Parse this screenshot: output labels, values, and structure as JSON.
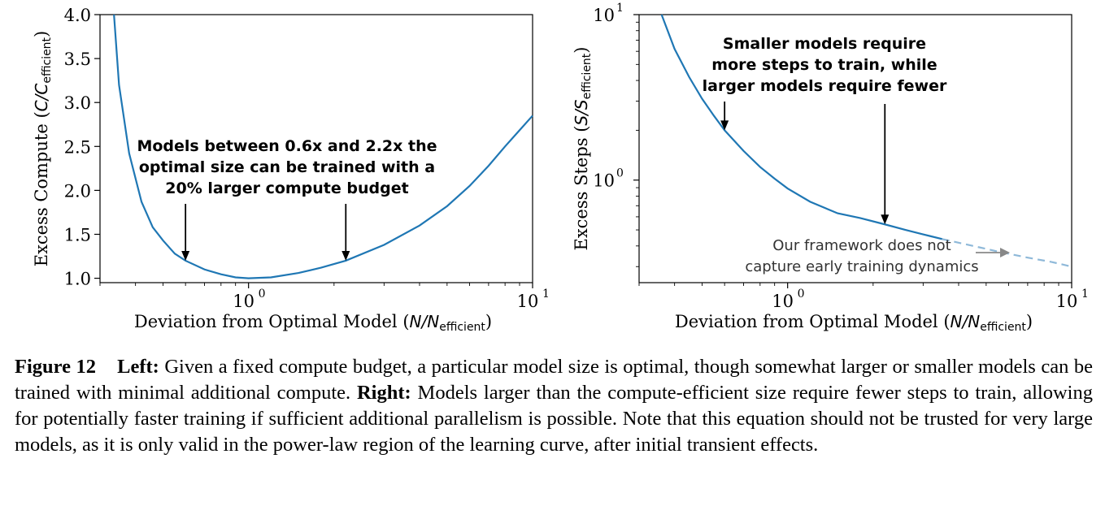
{
  "chart_data": [
    {
      "type": "line",
      "x_scale": "log",
      "y_scale": "linear",
      "xlim": [
        0.3,
        10
      ],
      "ylim": [
        0.95,
        4.0
      ],
      "xlabel_text": "Deviation from Optimal Model (",
      "xlabel_var": "N/N",
      "xlabel_sub": "efficient",
      "xlabel_close": ")",
      "ylabel_text": "Excess Compute (",
      "ylabel_var": "C/C",
      "ylabel_sub": "efficient",
      "ylabel_close": ")",
      "y_ticks": [
        "1.0",
        "1.5",
        "2.0",
        "2.5",
        "3.0",
        "3.5",
        "4.0"
      ],
      "x_ticks": [
        {
          "base": "10",
          "exp": "0"
        },
        {
          "base": "10",
          "exp": "1"
        }
      ],
      "series_color": "#1f77b4",
      "series": [
        {
          "x": [
            0.336,
            0.35,
            0.38,
            0.42,
            0.46,
            0.5,
            0.55,
            0.6,
            0.7,
            0.8,
            0.9,
            1.0,
            1.2,
            1.5,
            1.8,
            2.2,
            3.0,
            4.0,
            5.0,
            6.0,
            7.0,
            8.0,
            10.0
          ],
          "y": [
            4.0,
            3.2,
            2.42,
            1.87,
            1.58,
            1.43,
            1.28,
            1.2,
            1.1,
            1.045,
            1.01,
            1.0,
            1.01,
            1.06,
            1.12,
            1.2,
            1.38,
            1.6,
            1.82,
            2.05,
            2.28,
            2.5,
            2.85
          ]
        }
      ],
      "annotations": [
        {
          "lines": [
            "Models between 0.6x and 2.2x the",
            "optimal size can be trained with a",
            "20% larger compute budget"
          ]
        }
      ],
      "arrow_targets": [
        {
          "x": 0.6,
          "y": 1.2
        },
        {
          "x": 2.2,
          "y": 1.2
        }
      ]
    },
    {
      "type": "line",
      "x_scale": "log",
      "y_scale": "log",
      "xlim": [
        0.3,
        10
      ],
      "ylim": [
        0.24,
        10
      ],
      "xlabel_text": "Deviation from Optimal Model (",
      "xlabel_var": "N/N",
      "xlabel_sub": "efficient",
      "xlabel_close": ")",
      "ylabel_text": "Excess Steps (",
      "ylabel_var": "S/S",
      "ylabel_sub": "efficient",
      "ylabel_close": ")",
      "y_ticks": [
        {
          "base": "10",
          "exp": "0"
        },
        {
          "base": "10",
          "exp": "1"
        }
      ],
      "x_ticks": [
        {
          "base": "10",
          "exp": "0"
        },
        {
          "base": "10",
          "exp": "1"
        }
      ],
      "series_color": "#1f77b4",
      "dashed_color": "#8fb9d9",
      "series": [
        {
          "x": [
            0.36,
            0.4,
            0.45,
            0.5,
            0.55,
            0.6,
            0.7,
            0.8,
            0.9,
            1.0,
            1.2,
            1.5,
            1.8,
            2.2,
            2.6,
            3.0,
            3.5
          ],
          "y": [
            10.0,
            6.2,
            4.2,
            3.1,
            2.45,
            2.0,
            1.5,
            1.2,
            1.02,
            0.89,
            0.74,
            0.63,
            0.59,
            0.54,
            0.5,
            0.47,
            0.44
          ]
        },
        {
          "x": [
            3.5,
            4.5,
            5.5,
            7.0,
            8.5,
            10.0
          ],
          "y": [
            0.44,
            0.4,
            0.37,
            0.34,
            0.32,
            0.3
          ]
        }
      ],
      "annotations": [
        {
          "lines": [
            "Smaller models require",
            "more steps to train, while",
            "larger models require fewer"
          ]
        },
        {
          "lines": [
            "Our framework does not",
            "capture early training dynamics"
          ]
        }
      ],
      "arrow_targets": [
        {
          "x": 0.6,
          "y": 2.0
        },
        {
          "x": 2.2,
          "y": 0.54
        }
      ]
    }
  ],
  "caption": {
    "label": "Figure 12",
    "left_label": "Left:",
    "left_text": " Given a fixed compute budget, a particular model size is optimal, though somewhat larger or smaller models can be trained with minimal additional compute. ",
    "right_label": "Right:",
    "right_text": " Models larger than the compute-efficient size require fewer steps to train, allowing for potentially faster training if sufficient additional parallelism is possible. Note that this equation should not be trusted for very large models, as it is only valid in the power-law region of the learning curve, after initial transient effects."
  }
}
